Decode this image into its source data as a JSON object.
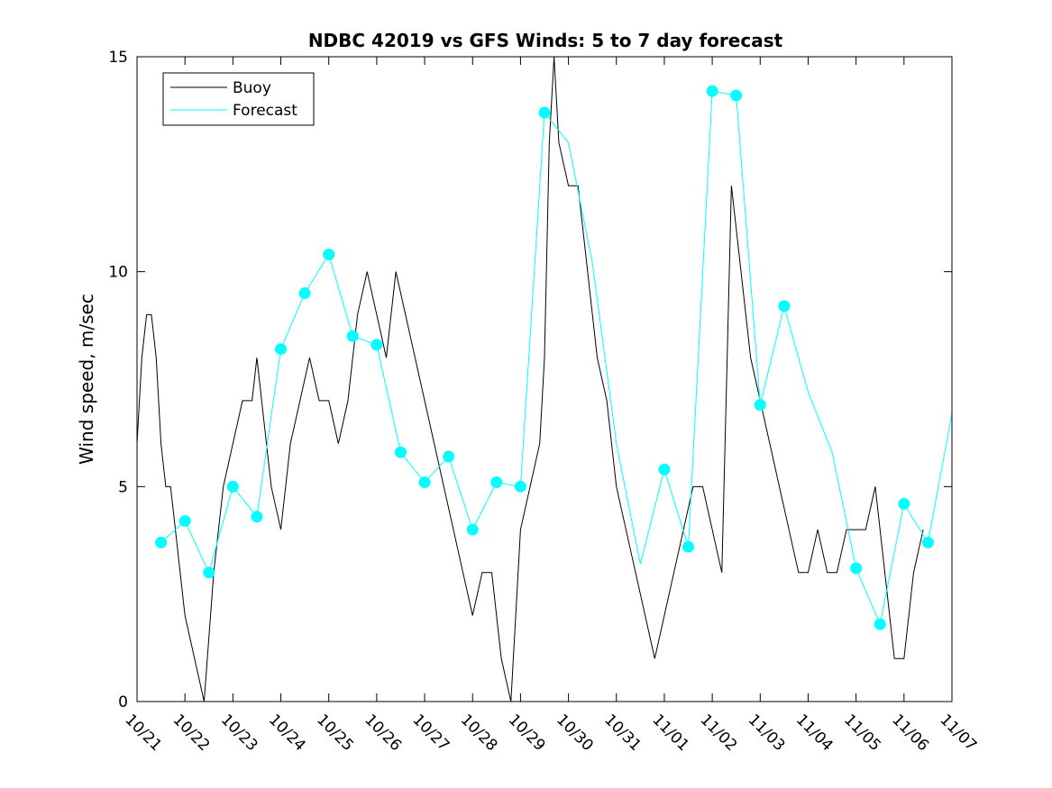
{
  "chart_data": {
    "type": "line",
    "title": "NDBC 42019 vs GFS Winds: 5 to 7 day forecast",
    "xlabel": "",
    "ylabel": "Wind speed, m/sec",
    "xlim": [
      0,
      17
    ],
    "ylim": [
      0,
      15
    ],
    "x_ticks": [
      0,
      1,
      2,
      3,
      4,
      5,
      6,
      7,
      8,
      9,
      10,
      11,
      12,
      13,
      14,
      15,
      16,
      17
    ],
    "x_tick_labels": [
      "10/21",
      "10/22",
      "10/23",
      "10/24",
      "10/25",
      "10/26",
      "10/27",
      "10/28",
      "10/29",
      "10/30",
      "10/31",
      "11/01",
      "11/02",
      "11/03",
      "11/04",
      "11/05",
      "11/06",
      "11/07"
    ],
    "y_ticks": [
      0,
      5,
      10,
      15
    ],
    "y_tick_labels": [
      "0",
      "5",
      "10",
      "15"
    ],
    "legend": {
      "position": "top-left",
      "entries": [
        "Buoy",
        "Forecast"
      ]
    },
    "colors": {
      "buoy": "#000000",
      "forecast": "#00ffff",
      "markers": "#00ffff"
    },
    "series": [
      {
        "name": "Buoy",
        "x": [
          0,
          0.1,
          0.2,
          0.3,
          0.4,
          0.5,
          0.6,
          0.7,
          0.8,
          0.9,
          1.0,
          1.2,
          1.4,
          1.6,
          1.8,
          2.0,
          2.2,
          2.4,
          2.5,
          2.8,
          3.0,
          3.2,
          3.4,
          3.6,
          3.8,
          4.0,
          4.2,
          4.4,
          4.6,
          4.8,
          5.0,
          5.2,
          5.4,
          5.6,
          5.8,
          6.0,
          6.2,
          6.4,
          6.6,
          6.8,
          7.0,
          7.2,
          7.4,
          7.6,
          7.8,
          8.0,
          8.2,
          8.4,
          8.5,
          8.6,
          8.7,
          8.8,
          9.0,
          9.2,
          9.4,
          9.6,
          9.8,
          10.0,
          10.2,
          10.4,
          10.6,
          10.8,
          11.0,
          11.2,
          11.4,
          11.6,
          11.8,
          12.0,
          12.2,
          12.4,
          12.6,
          12.8,
          13.0,
          13.2,
          13.4,
          13.6,
          13.8,
          14.0,
          14.2,
          14.4,
          14.6,
          14.8,
          15.0,
          15.2,
          15.4,
          15.6,
          15.8,
          16.0,
          16.2,
          16.4
        ],
        "values": [
          6,
          8,
          9,
          9,
          8,
          6,
          5,
          5,
          4,
          3,
          2,
          1,
          0,
          3,
          5,
          6,
          7,
          7,
          8,
          5,
          4,
          6,
          7,
          8,
          7,
          7,
          6,
          7,
          9,
          10,
          9,
          8,
          10,
          9,
          8,
          7,
          6,
          5,
          4,
          3,
          2,
          3,
          3,
          1,
          0,
          4,
          5,
          6,
          8,
          13,
          15,
          13,
          12,
          12,
          10,
          8,
          7,
          5,
          4,
          3,
          2,
          1,
          2,
          3,
          4,
          5,
          5,
          4,
          3,
          12,
          10,
          8,
          7,
          6,
          5,
          4,
          3,
          3,
          4,
          3,
          3,
          4,
          4,
          4,
          5,
          3,
          1,
          1,
          3,
          4
        ]
      },
      {
        "name": "Forecast",
        "x": [
          0.5,
          1.0,
          1.5,
          2.0,
          2.5,
          3.0,
          3.5,
          4.0,
          4.5,
          5.0,
          5.5,
          6.0,
          6.5,
          7.0,
          7.5,
          8.0,
          8.5,
          9.0,
          9.5,
          10.0,
          10.5,
          11.0,
          11.5,
          12.0,
          12.5,
          13.0,
          13.5,
          14.0,
          14.5,
          15.0,
          15.5,
          16.0,
          16.5,
          17.0
        ],
        "values": [
          3.7,
          4.2,
          3.0,
          5.0,
          4.3,
          8.2,
          9.5,
          10.4,
          8.5,
          8.3,
          5.8,
          5.1,
          5.7,
          4.0,
          5.1,
          5.0,
          13.7,
          13.0,
          10.2,
          6.0,
          3.2,
          5.4,
          3.6,
          14.2,
          14.1,
          6.9,
          9.2,
          7.2,
          5.8,
          3.1,
          1.8,
          4.6,
          3.7,
          6.7
        ]
      },
      {
        "name": "Forecast markers",
        "x": [
          0.5,
          1.0,
          1.5,
          2.0,
          2.5,
          3.0,
          3.5,
          4.0,
          4.5,
          5.0,
          5.5,
          6.0,
          6.5,
          7.0,
          7.5,
          8.0,
          8.5,
          11.0,
          11.5,
          12.0,
          12.5,
          13.0,
          13.5,
          15.0,
          15.5,
          16.0,
          16.5
        ],
        "values": [
          3.7,
          4.2,
          3.0,
          5.0,
          4.3,
          8.2,
          9.5,
          10.4,
          8.5,
          8.3,
          5.8,
          5.1,
          5.7,
          4.0,
          5.1,
          5.0,
          13.7,
          5.4,
          3.6,
          14.2,
          14.1,
          6.9,
          9.2,
          3.1,
          1.8,
          4.6,
          3.7
        ]
      }
    ]
  }
}
